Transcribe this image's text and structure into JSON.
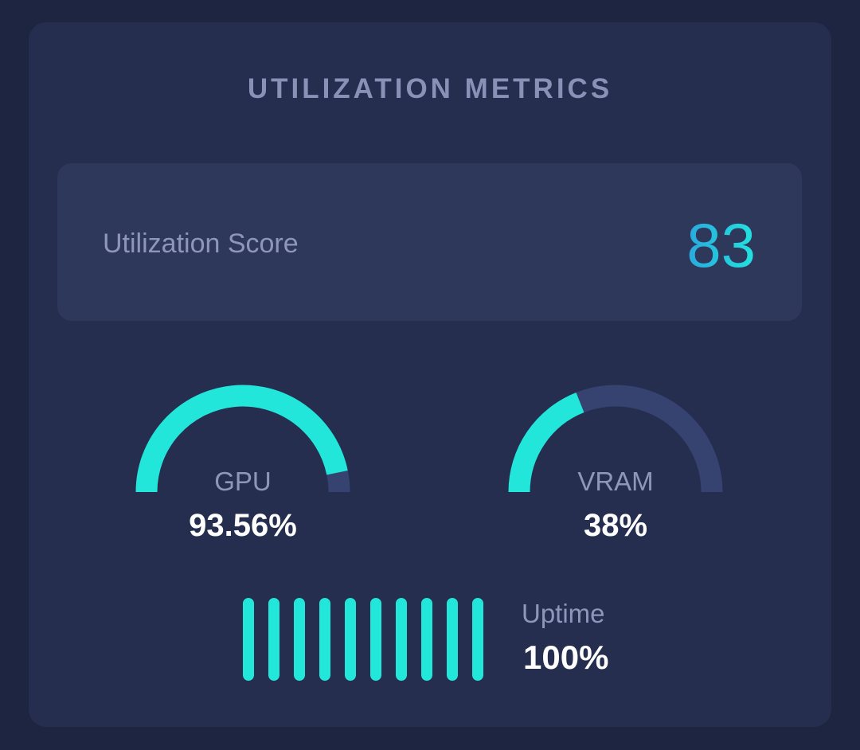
{
  "title": "UTILIZATION METRICS",
  "score": {
    "label": "Utilization Score",
    "value": "83"
  },
  "gauges": [
    {
      "label": "GPU",
      "value": "93.56%",
      "fraction": 0.9356
    },
    {
      "label": "VRAM",
      "value": "38%",
      "fraction": 0.38
    }
  ],
  "uptime": {
    "label": "Uptime",
    "value": "100%",
    "filled_fraction": 1.0
  },
  "colors": {
    "background": "#1d2540",
    "card": "#252e4f",
    "panel": "#2e385a",
    "accent": "#23e6db",
    "track": "#364270",
    "muted_text": "#8e97ba",
    "score_gradient_start": "#2aa8dd",
    "score_gradient_end": "#22e3df"
  }
}
